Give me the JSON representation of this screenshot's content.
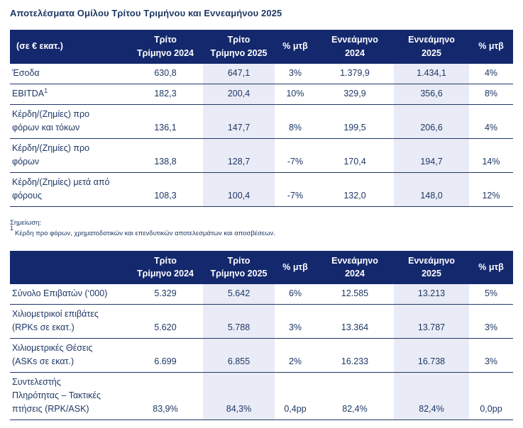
{
  "page": {
    "title": "Αποτελέσματα Ομίλου Τρίτου Τριμήνου και Εννεαμήνου 2025"
  },
  "colors": {
    "header_bg": "#14286d",
    "highlight_bg": "#e9ebf6",
    "text": "#1f3864",
    "rule": "#1f3864"
  },
  "financial_table": {
    "columns": [
      {
        "label": "(σε € εκατ.)",
        "align": "left",
        "highlight": false
      },
      {
        "label": "Τρίτο\nΤρίμηνο 2024",
        "highlight": false
      },
      {
        "label": "Τρίτο\nΤρίμηνο 2025",
        "highlight": true
      },
      {
        "label": "% μτβ",
        "highlight": false
      },
      {
        "label": "Εννεάμηνο\n2024",
        "highlight": false
      },
      {
        "label": "Εννεάμηνο\n2025",
        "highlight": true
      },
      {
        "label": "% μτβ",
        "highlight": false
      }
    ],
    "rows": [
      {
        "label": "Έσοδα",
        "values": [
          "630,8",
          "647,1",
          "3%",
          "1.379,9",
          "1.434,1",
          "4%"
        ]
      },
      {
        "label": "EBITDA",
        "label_sup": "1",
        "values": [
          "182,3",
          "200,4",
          "10%",
          "329,9",
          "356,6",
          "8%"
        ]
      },
      {
        "label": "Κέρδη/(Ζημίες) προ\nφόρων και τόκων",
        "values": [
          "136,1",
          "147,7",
          "8%",
          "199,5",
          "206,6",
          "4%"
        ]
      },
      {
        "label": "Κέρδη/(Ζημίες) προ\nφόρων",
        "values": [
          "138,8",
          "128,7",
          "-7%",
          "170,4",
          "194,7",
          "14%"
        ]
      },
      {
        "label": "Κέρδη/(Ζημίες) μετά από\nφόρους",
        "values": [
          "108,3",
          "100,4",
          "-7%",
          "132,0",
          "148,0",
          "12%"
        ]
      }
    ]
  },
  "note": {
    "heading": "Σημείωση:",
    "sup": "1",
    "text": "Κέρδη προ φόρων, χρηματοδοτικών και επενδυτικών αποτελεσμάτων και αποσβέσεων."
  },
  "traffic_table": {
    "columns": [
      {
        "label": "",
        "align": "left",
        "highlight": false
      },
      {
        "label": "Τρίτο\nΤρίμηνο 2024",
        "highlight": false
      },
      {
        "label": "Τρίτο\nΤρίμηνο 2025",
        "highlight": true
      },
      {
        "label": "% μτβ",
        "highlight": false
      },
      {
        "label": "Εννεάμηνο\n2024",
        "highlight": false
      },
      {
        "label": "Εννεάμηνο\n2025",
        "highlight": true
      },
      {
        "label": "% μτβ",
        "highlight": false
      }
    ],
    "rows": [
      {
        "label": "Σύνολο Επιβατών (‘000)",
        "values": [
          "5.329",
          "5.642",
          "6%",
          "12.585",
          "13.213",
          "5%"
        ]
      },
      {
        "label": "Χιλιομετρικοί επιβάτες\n(RPKs σε εκατ.)",
        "values": [
          "5.620",
          "5.788",
          "3%",
          "13.364",
          "13.787",
          "3%"
        ]
      },
      {
        "label": "Χιλιομετρικές Θέσεις\n(ASKs σε εκατ.)",
        "values": [
          "6.699",
          "6.855",
          "2%",
          "16.233",
          "16.738",
          "3%"
        ]
      },
      {
        "label": "Συντελεστής\nΠληρότητας – Τακτικές\nπτήσεις (RPK/ASK)",
        "values": [
          "83,9%",
          "84,3%",
          "0,4pp",
          "82,4%",
          "82,4%",
          "0,0pp"
        ]
      }
    ]
  }
}
